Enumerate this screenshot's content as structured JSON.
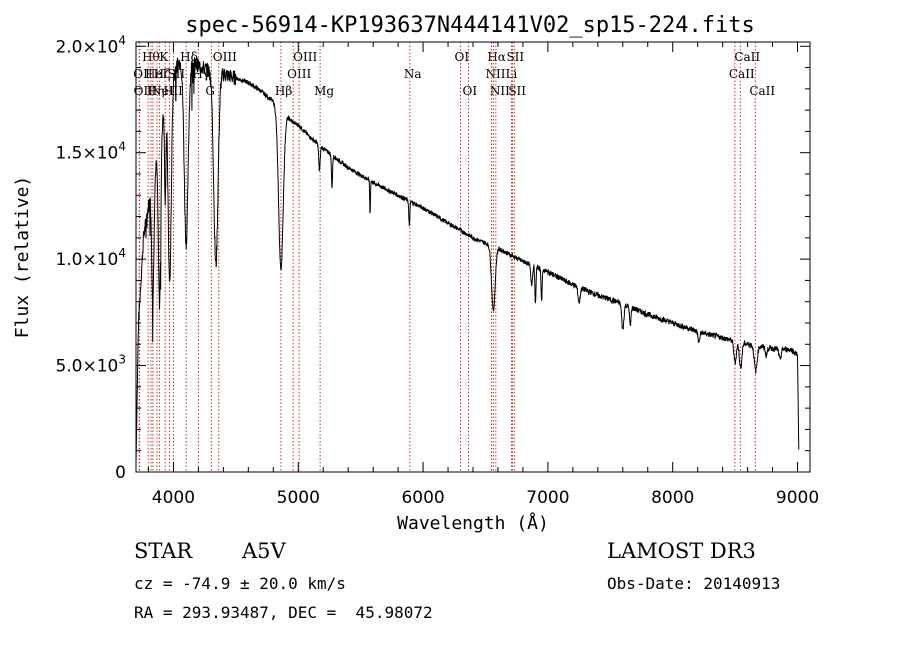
{
  "chart_data": {
    "type": "line",
    "title": "spec-56914-KP193637N444141V02_sp15-224.fits",
    "xlabel": "Wavelength (Å)",
    "ylabel": "Flux (relative)",
    "xlim": [
      3700,
      9100
    ],
    "ylim": [
      0,
      20200
    ],
    "x_ticks": [
      {
        "value": 4000,
        "label": "4000"
      },
      {
        "value": 5000,
        "label": "5000"
      },
      {
        "value": 6000,
        "label": "6000"
      },
      {
        "value": 7000,
        "label": "7000"
      },
      {
        "value": 8000,
        "label": "8000"
      },
      {
        "value": 9000,
        "label": "9000"
      }
    ],
    "y_ticks": [
      {
        "value": 0,
        "mantissa": "0",
        "exponent": ""
      },
      {
        "value": 5000,
        "mantissa": "5.0×10",
        "exponent": "3"
      },
      {
        "value": 10000,
        "mantissa": "1.0×10",
        "exponent": "4"
      },
      {
        "value": 15000,
        "mantissa": "1.5×10",
        "exponent": "4"
      },
      {
        "value": 20000,
        "mantissa": "2.0×10",
        "exponent": "4"
      }
    ],
    "continuum": [
      [
        3700,
        500
      ],
      [
        3720,
        7000
      ],
      [
        3760,
        11000
      ],
      [
        3800,
        12500
      ],
      [
        3850,
        14000
      ],
      [
        3900,
        16500
      ],
      [
        3950,
        18000
      ],
      [
        4000,
        18800
      ],
      [
        4050,
        19300
      ],
      [
        4100,
        19300
      ],
      [
        4200,
        19100
      ],
      [
        4300,
        18800
      ],
      [
        4400,
        18700
      ],
      [
        4500,
        18500
      ],
      [
        4600,
        18300
      ],
      [
        4700,
        17900
      ],
      [
        4800,
        17400
      ],
      [
        4900,
        16800
      ],
      [
        4950,
        16450
      ],
      [
        5000,
        16300
      ],
      [
        5100,
        15700
      ],
      [
        5200,
        15200
      ],
      [
        5400,
        14300
      ],
      [
        5600,
        13600
      ],
      [
        5800,
        13000
      ],
      [
        6000,
        12400
      ],
      [
        6200,
        11700
      ],
      [
        6400,
        11000
      ],
      [
        6600,
        10500
      ],
      [
        6800,
        9900
      ],
      [
        7000,
        9400
      ],
      [
        7200,
        8800
      ],
      [
        7400,
        8300
      ],
      [
        7600,
        7900
      ],
      [
        7800,
        7400
      ],
      [
        8000,
        7000
      ],
      [
        8200,
        6600
      ],
      [
        8400,
        6300
      ],
      [
        8600,
        6000
      ],
      [
        8800,
        5800
      ],
      [
        8950,
        5750
      ],
      [
        9000,
        5500
      ],
      [
        9010,
        1000
      ]
    ],
    "absorption": [
      {
        "center": 3835,
        "depth": 5500,
        "width": 12
      },
      {
        "center": 3889,
        "depth": 8000,
        "width": 14
      },
      {
        "center": 3934,
        "depth": 4500,
        "width": 8
      },
      {
        "center": 3970,
        "depth": 9500,
        "width": 18
      },
      {
        "center": 4102,
        "depth": 8500,
        "width": 22
      },
      {
        "center": 4340,
        "depth": 9000,
        "width": 24
      },
      {
        "center": 4861,
        "depth": 7500,
        "width": 26
      },
      {
        "center": 5170,
        "depth": 1200,
        "width": 8
      },
      {
        "center": 5270,
        "depth": 1500,
        "width": 6
      },
      {
        "center": 5575,
        "depth": 1600,
        "width": 4
      },
      {
        "center": 5890,
        "depth": 1200,
        "width": 6
      },
      {
        "center": 6563,
        "depth": 3000,
        "width": 20
      },
      {
        "center": 6870,
        "depth": 900,
        "width": 10
      },
      {
        "center": 6900,
        "depth": 1800,
        "width": 6
      },
      {
        "center": 6950,
        "depth": 1500,
        "width": 6
      },
      {
        "center": 7250,
        "depth": 700,
        "width": 12
      },
      {
        "center": 7600,
        "depth": 1200,
        "width": 12
      },
      {
        "center": 7660,
        "depth": 900,
        "width": 8
      },
      {
        "center": 8210,
        "depth": 500,
        "width": 10
      },
      {
        "center": 8500,
        "depth": 1000,
        "width": 14
      },
      {
        "center": 8544,
        "depth": 1200,
        "width": 14
      },
      {
        "center": 8665,
        "depth": 1200,
        "width": 16
      },
      {
        "center": 8750,
        "depth": 400,
        "width": 10
      },
      {
        "center": 8860,
        "depth": 500,
        "width": 12
      }
    ],
    "line_markers": [
      {
        "wl": 3726,
        "label": "OII",
        "row": 1
      },
      {
        "wl": 3729,
        "label": "OII",
        "row": 2
      },
      {
        "wl": 3797,
        "label": "Hθ",
        "row": 0
      },
      {
        "wl": 3820,
        "label": "HeI",
        "row": 1
      },
      {
        "wl": 3835,
        "label": "Hη",
        "row": 2
      },
      {
        "wl": 3869,
        "label": "NeIII",
        "row": 2
      },
      {
        "wl": 3889,
        "label": "Hζ",
        "row": 1
      },
      {
        "wl": 3934,
        "label": "K",
        "row": 0
      },
      {
        "wl": 3968,
        "label": "H",
        "row": 2
      },
      {
        "wl": 4000,
        "label": "SII",
        "row": 1
      },
      {
        "wl": 4102,
        "label": "Hδ",
        "row": 0
      },
      {
        "wl": 4200,
        "label": "Hγ",
        "row": 1
      },
      {
        "wl": 4304,
        "label": "G",
        "row": 2
      },
      {
        "wl": 4363,
        "label": "OIII",
        "row": 0
      },
      {
        "wl": 4861,
        "label": "Hβ",
        "row": 2
      },
      {
        "wl": 4959,
        "label": "OIII",
        "row": 1
      },
      {
        "wl": 5007,
        "label": "OIII",
        "row": 0
      },
      {
        "wl": 5175,
        "label": "Mg",
        "row": 2
      },
      {
        "wl": 5894,
        "label": "Na",
        "row": 1
      },
      {
        "wl": 6300,
        "label": "OI",
        "row": 0
      },
      {
        "wl": 6364,
        "label": "OI",
        "row": 2
      },
      {
        "wl": 6548,
        "label": "NII",
        "row": 1
      },
      {
        "wl": 6563,
        "label": "Hα",
        "row": 0
      },
      {
        "wl": 6583,
        "label": "NII",
        "row": 2
      },
      {
        "wl": 6708,
        "label": "Li",
        "row": 1
      },
      {
        "wl": 6716,
        "label": "SII",
        "row": 0
      },
      {
        "wl": 6731,
        "label": "SII",
        "row": 2
      },
      {
        "wl": 8498,
        "label": "CaII",
        "row": 1
      },
      {
        "wl": 8542,
        "label": "CaII",
        "row": 0
      },
      {
        "wl": 8662,
        "label": "CaII",
        "row": 2
      }
    ]
  },
  "info": {
    "object_class": "STAR",
    "subclass": "A5V",
    "survey": "LAMOST DR3",
    "redshift_line": "cz = -74.9 ± 20.0 km/s",
    "obs_date_line": "Obs-Date: 20140913",
    "coords_line": "RA = 293.93487, DEC =  45.98072"
  },
  "colors": {
    "spectrum": "#000000",
    "marker": "#c0392b",
    "axes": "#000000"
  }
}
